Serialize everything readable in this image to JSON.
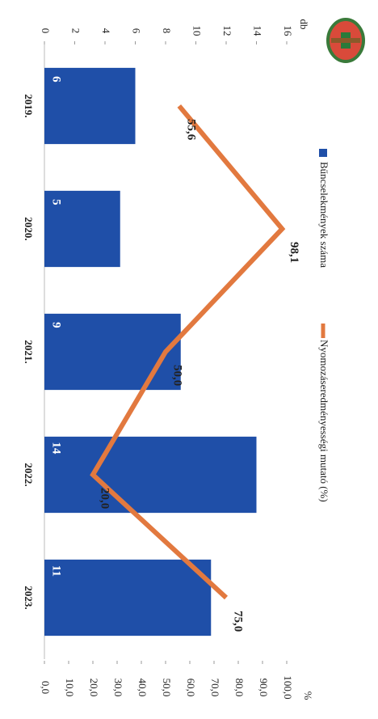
{
  "chart_data": {
    "type": "bar",
    "categories": [
      "2019.",
      "2020.",
      "2021.",
      "2022.",
      "2023."
    ],
    "series": [
      {
        "name": "Bűncselekmények száma",
        "type": "bar",
        "color": "#1f4fa8",
        "values": [
          6,
          5,
          9,
          14,
          11
        ]
      },
      {
        "name": "Nyomozáseredményességi mutató (%)",
        "type": "line",
        "axis": "y2",
        "color": "#e2793f",
        "values": [
          55.6,
          98.1,
          50.0,
          20.0,
          75.0
        ],
        "value_labels": [
          "55,6",
          "98,1",
          "50,0",
          "20,0",
          "75,0"
        ]
      }
    ],
    "ylabel": "db",
    "y2label": "%",
    "ylim": [
      0,
      16
    ],
    "yticks": [
      0,
      2,
      4,
      6,
      8,
      10,
      12,
      14,
      16
    ],
    "y2lim": [
      0,
      100
    ],
    "y2ticks": [
      {
        "value": 0,
        "label": "0,0"
      },
      {
        "value": 10,
        "label": "10,0"
      },
      {
        "value": 20,
        "label": "20,0"
      },
      {
        "value": 30,
        "label": "30,0"
      },
      {
        "value": 40,
        "label": "40,0"
      },
      {
        "value": 50,
        "label": "50,0"
      },
      {
        "value": 60,
        "label": "60,0"
      },
      {
        "value": 70,
        "label": "70,0"
      },
      {
        "value": 80,
        "label": "80,0"
      },
      {
        "value": 90,
        "label": "90,0"
      },
      {
        "value": 100,
        "label": "100,0"
      }
    ],
    "legend": "top",
    "rotated": true
  }
}
